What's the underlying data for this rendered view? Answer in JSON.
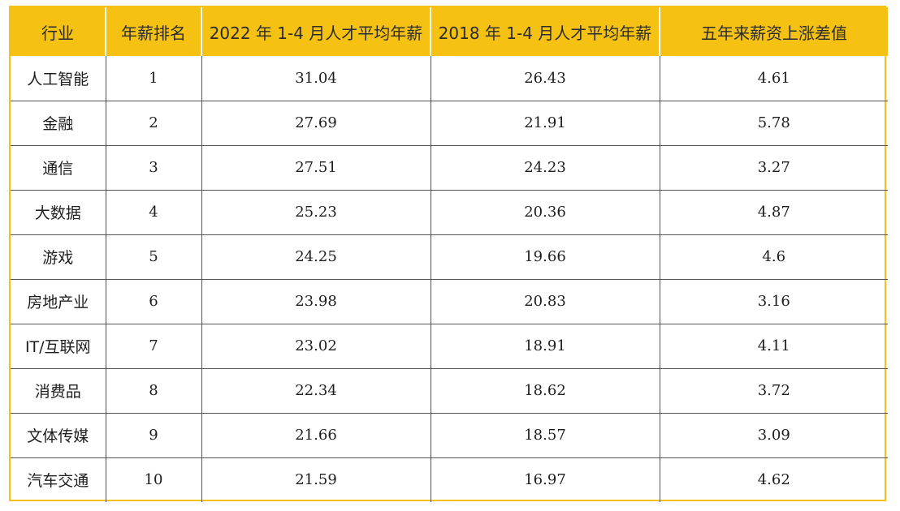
{
  "table": {
    "headers": [
      "行业",
      "年薪排名",
      "2022 年 1-4 月人才平均年薪",
      "2018 年 1-4 月人才平均年薪",
      "五年来薪资上涨差值"
    ],
    "rows": [
      [
        "人工智能",
        "1",
        "31.04",
        "26.43",
        "4.61"
      ],
      [
        "金融",
        "2",
        "27.69",
        "21.91",
        "5.78"
      ],
      [
        "通信",
        "3",
        "27.51",
        "24.23",
        "3.27"
      ],
      [
        "大数据",
        "4",
        "25.23",
        "20.36",
        "4.87"
      ],
      [
        "游戏",
        "5",
        "24.25",
        "19.66",
        "4.6"
      ],
      [
        "房地产业",
        "6",
        "23.98",
        "20.83",
        "3.16"
      ],
      [
        "IT/互联网",
        "7",
        "23.02",
        "18.91",
        "4.11"
      ],
      [
        "消费品",
        "8",
        "22.34",
        "18.62",
        "3.72"
      ],
      [
        "文体传媒",
        "9",
        "21.66",
        "18.57",
        "3.09"
      ],
      [
        "汽车交通",
        "10",
        "21.59",
        "16.97",
        "4.62"
      ]
    ]
  },
  "colors": {
    "header_background": "#f5c113",
    "frame_border": "#f5c113",
    "grid_line": "#555555",
    "text": "#1e1e1e"
  }
}
